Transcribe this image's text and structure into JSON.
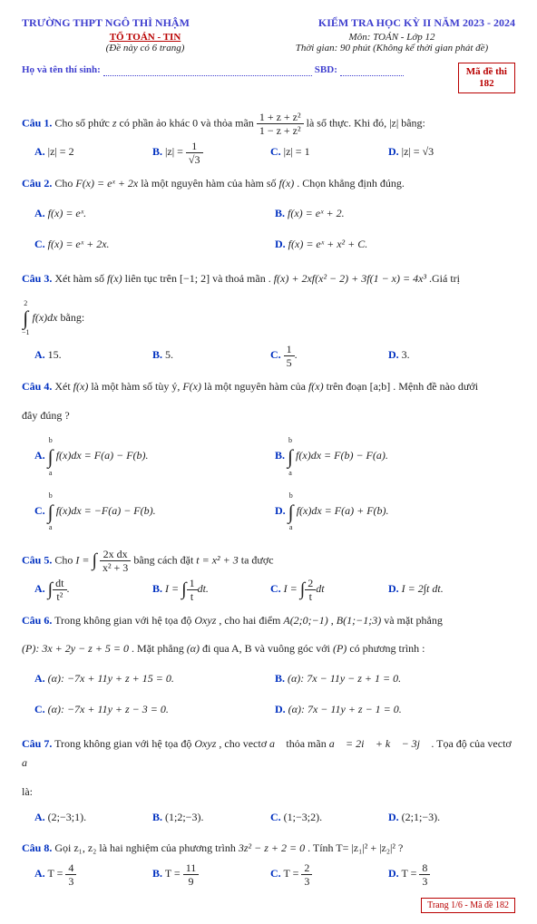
{
  "header": {
    "school": "TRƯỜNG THPT NGÔ THÌ NHẬM",
    "exam": "KIỂM TRA HỌC KỲ II NĂM 2023 - 2024",
    "dept": "TỔ TOÁN - TIN",
    "note": "(Đề này có 6 trang)",
    "subject": "Môn: TOÁN - Lớp 12",
    "time": "Thời gian: 90 phút (Không kể thời gian phát đề)",
    "name_label": "Họ và tên thí sinh:",
    "sbd_label": "SBD:",
    "code_label": "Mã đề thi",
    "code": "182"
  },
  "questions": {
    "q1": {
      "label": "Câu 1.",
      "pre": " Cho số phức ",
      "z": "z",
      "mid": " có phần ảo khác 0 và thỏa mãn ",
      "frac_nu": "1 + z + z²",
      "frac_de": "1 − z + z²",
      "post": " là số thực. Khi đó, |z| bằng:",
      "A_l": "A.",
      "A": "|z| = 2",
      "B_l": "B.",
      "B_pre": "|z| = ",
      "B_nu": "1",
      "B_de": "√3",
      "C_l": "C.",
      "C": "|z| = 1",
      "D_l": "D.",
      "D": "|z| = √3"
    },
    "q2": {
      "label": "Câu 2.",
      "pre": " Cho ",
      "F": "F(x) = eˣ + 2x",
      "mid": " là một nguyên hàm của hàm số ",
      "f": "f(x)",
      "post": ". Chọn khẳng định đúng.",
      "A_l": "A.",
      "A": "f(x) = eˣ.",
      "B_l": "B.",
      "B": "f(x) = eˣ + 2.",
      "C_l": "C.",
      "C": "f(x) = eˣ + 2x.",
      "D_l": "D.",
      "D": "f(x) = eˣ + x² + C."
    },
    "q3": {
      "label": "Câu 3.",
      "pre": " Xét hàm số ",
      "f": "f(x)",
      "mid1": " liên tục trên ",
      "range": "[−1; 2]",
      "mid2": " và thoả mãn . ",
      "eq": "f(x) + 2xf(x² − 2) + 3f(1 − x) = 4x³",
      "post": " .Giá trị",
      "int_top": "2",
      "int_sym": "∫",
      "int_bot": "−1",
      "int_body": "f(x)dx",
      "int_post": " bằng:",
      "A_l": "A.",
      "A": "15.",
      "B_l": "B.",
      "B": "5.",
      "C_l": "C.",
      "C_nu": "1",
      "C_de": "5",
      "C_post": ".",
      "D_l": "D.",
      "D": "3."
    },
    "q4": {
      "label": "Câu 4.",
      "pre": " Xét ",
      "f": "f(x)",
      "mid1": " là một hàm số tùy ý, ",
      "F": "F(x)",
      "mid2": " là một nguyên hàm của ",
      "f2": "f(x)",
      "mid3": " trên đoạn",
      "ab": "[a;b]",
      "post": ". Mệnh đề nào dưới",
      "post2": "đây đúng ?",
      "A_l": "A.",
      "A_top": "b",
      "A_sym": "∫",
      "A_bot": "a",
      "A": "f(x)dx = F(a) − F(b).",
      "B_l": "B.",
      "B_top": "b",
      "B_sym": "∫",
      "B_bot": "a",
      "B": "f(x)dx = F(b) − F(a).",
      "C_l": "C.",
      "C_top": "b",
      "C_sym": "∫",
      "C_bot": "a",
      "C": "f(x)dx = −F(a) − F(b).",
      "D_l": "D.",
      "D_top": "b",
      "D_sym": "∫",
      "D_bot": "a",
      "D": "f(x)dx = F(a) + F(b)."
    },
    "q5": {
      "label": "Câu 5.",
      "pre": " Cho ",
      "I": "I = ",
      "int_sym": "∫",
      "nu": "2x dx",
      "de": "x² + 3",
      "mid": " bằng cách đặt ",
      "sub": "t = x² + 3",
      "post": " ta được",
      "A_l": "A.",
      "A_sym": "∫",
      "A_nu": "dt",
      "A_de": "t²",
      "A_post": ".",
      "B_l": "B.",
      "B_pre": "I = ",
      "B_sym": "∫",
      "B_nu": "1",
      "B_de": "t",
      "B_post": "dt.",
      "C_l": "C.",
      "C_pre": "I = ",
      "C_sym": "∫",
      "C_nu": "2",
      "C_de": "t",
      "C_post": "dt",
      "D_l": "D.",
      "D": "I = 2∫t dt."
    },
    "q6": {
      "label": "Câu 6.",
      "pre": " Trong không gian với hệ tọa độ ",
      "sys": "Oxyz",
      "mid1": ", cho hai điểm ",
      "A_pt": "A(2;0;−1)",
      "mid2": ", ",
      "B_pt": "B(1;−1;3)",
      "mid3": " và mặt phẳng",
      "P": "(P): 3x + 2y − z + 5 = 0",
      "mid4": ". Mặt phẳng ",
      "a": "(α)",
      "mid5": " đi qua A, B và vuông góc với ",
      "P2": "(P)",
      "post": " có phương trình :",
      "oA_l": "A.",
      "oA": "(α): −7x + 11y + z + 15 = 0.",
      "oB_l": "B.",
      "oB": "(α): 7x − 11y − z + 1 = 0.",
      "oC_l": "C.",
      "oC": "(α): −7x + 11y + z − 3 = 0.",
      "oD_l": "D.",
      "oD": "(α): 7x − 11y + z − 1 = 0."
    },
    "q7": {
      "label": "Câu 7.",
      "pre": " Trong không gian với hệ tọa độ ",
      "sys": "Oxyz",
      "mid1": ", cho vectơ ",
      "a_vec": "a⃗",
      "mid2": " thỏa mãn ",
      "eq": "a⃗ = 2i⃗ + k⃗ − 3j⃗",
      "post": ". Tọa độ của vectơ ",
      "a2": "a⃗",
      "post2": "là:",
      "A_l": "A.",
      "A": "(2;−3;1).",
      "B_l": "B.",
      "B": "(1;2;−3).",
      "C_l": "C.",
      "C": "(1;−3;2).",
      "D_l": "D.",
      "D": "(2;1;−3)."
    },
    "q8": {
      "label": "Câu 8.",
      "pre": " Gọi z₁, z₂ là hai nghiệm của phương trình ",
      "eq": "3z² − z + 2 = 0",
      "mid": ". Tính T= |z₁|² + |z₂|² ?",
      "A_l": "A.",
      "A_pre": "T = ",
      "A_nu": "4",
      "A_de": "3",
      "B_l": "B.",
      "B_pre": "T = ",
      "B_nu": "11",
      "B_de": "9",
      "C_l": "C.",
      "C_pre": "T = ",
      "C_nu": "2",
      "C_de": "3",
      "D_l": "D.",
      "D_pre": "T = ",
      "D_nu": "8",
      "D_de": "3"
    }
  },
  "footer": "Trang 1/6 - Mã đề 182"
}
